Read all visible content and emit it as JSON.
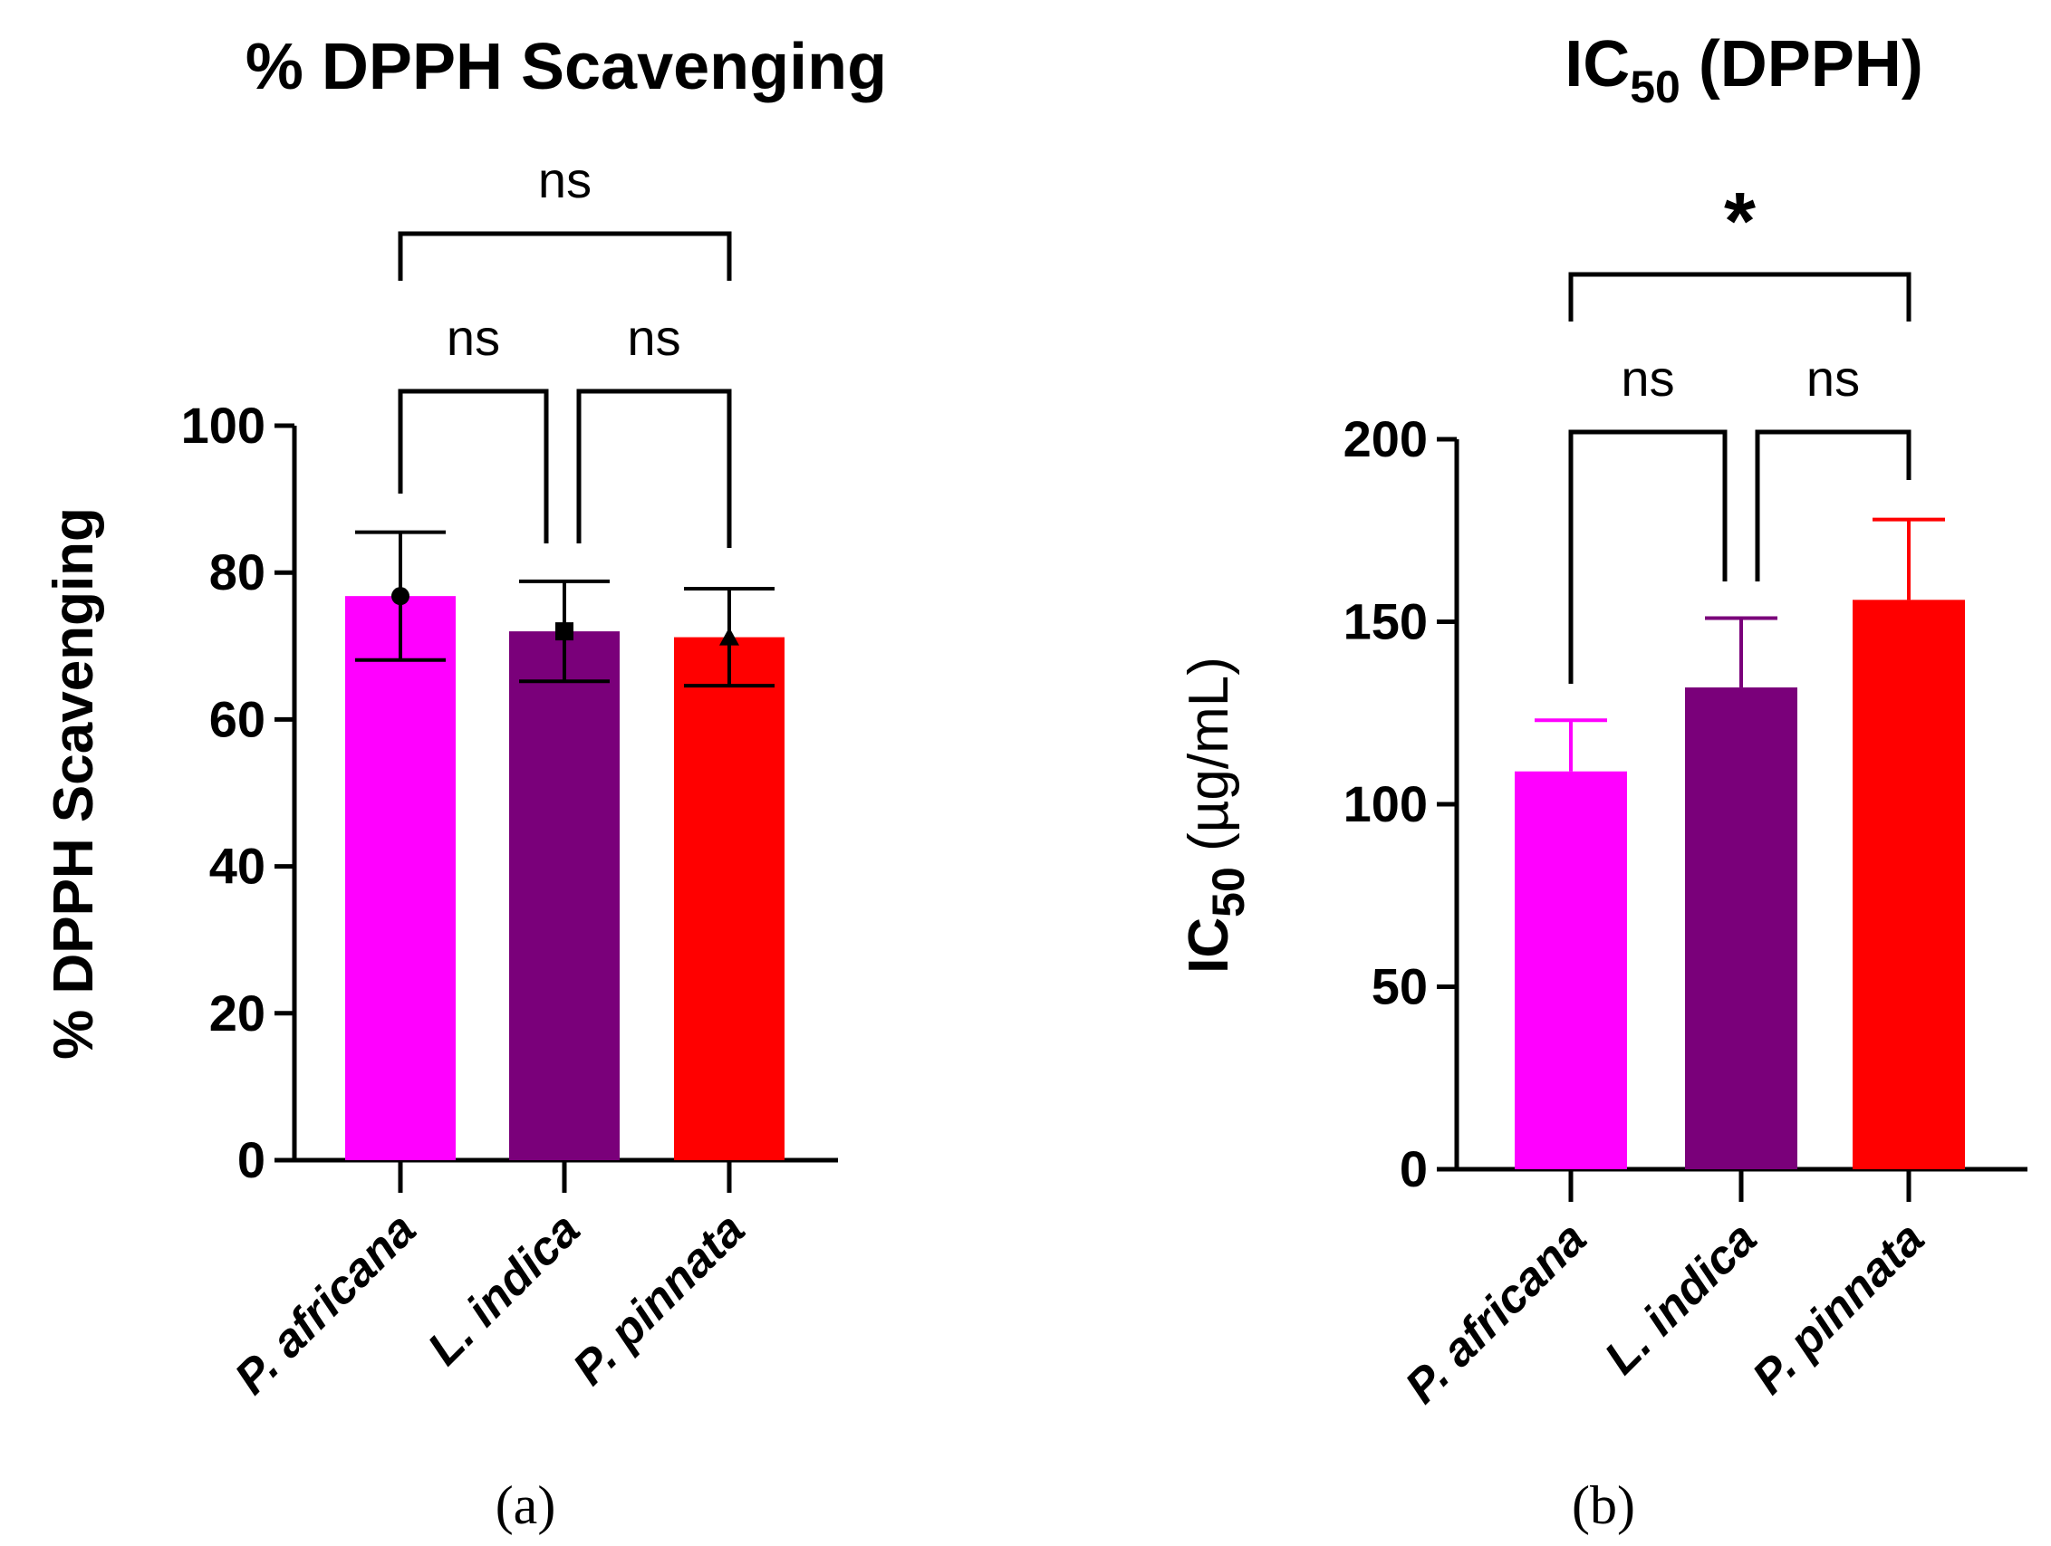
{
  "chart_data": [
    {
      "type": "bar",
      "panel_label": "(a)",
      "title": "% DPPH Scavenging",
      "ylabel": "% DPPH Scavenging",
      "xlabel": "",
      "ylim": [
        0,
        100
      ],
      "yticks": [
        0,
        20,
        40,
        60,
        80,
        100
      ],
      "categories": [
        "P. africana",
        "L. indica",
        "P. pinnata"
      ],
      "values": [
        76.8,
        72.0,
        71.2
      ],
      "errors": [
        8.7,
        6.8,
        6.6
      ],
      "markers": [
        "circle",
        "square",
        "triangle"
      ],
      "colors": [
        "#ff00ff",
        "#7a007a",
        "#ff0000"
      ],
      "error_color": "#000000",
      "annotations": [
        {
          "from": 0,
          "to": 1,
          "label": "ns"
        },
        {
          "from": 1,
          "to": 2,
          "label": "ns"
        },
        {
          "from": 0,
          "to": 2,
          "label": "ns"
        }
      ]
    },
    {
      "type": "bar",
      "panel_label": "(b)",
      "title": "IC",
      "title_subscript": "50",
      "title_suffix": " (DPPH)",
      "ylabel": "IC",
      "ylabel_subscript": "50",
      "ylabel_suffix": " (µg/mL)",
      "xlabel": "",
      "ylim": [
        0,
        200
      ],
      "yticks": [
        0,
        50,
        100,
        150,
        200
      ],
      "categories": [
        "P. africana",
        "L. indica",
        "P. pinnata"
      ],
      "values": [
        109,
        132,
        156
      ],
      "errors": [
        14,
        19,
        22
      ],
      "colors": [
        "#ff00ff",
        "#7a007a",
        "#ff0000"
      ],
      "annotations": [
        {
          "from": 0,
          "to": 1,
          "label": "ns"
        },
        {
          "from": 1,
          "to": 2,
          "label": "ns"
        },
        {
          "from": 0,
          "to": 2,
          "label": "*"
        }
      ]
    }
  ]
}
